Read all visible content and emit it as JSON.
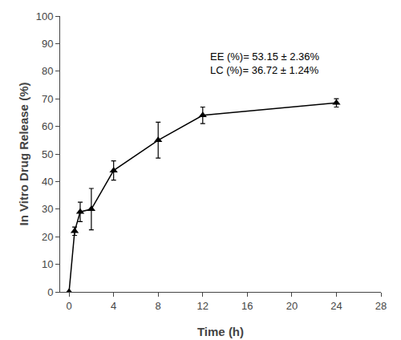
{
  "chart_data": {
    "type": "line",
    "x": [
      0,
      0.5,
      1,
      2,
      4,
      8,
      12,
      24
    ],
    "values": [
      0,
      22,
      29,
      30,
      44,
      55,
      64,
      68.5
    ],
    "yerr": [
      0,
      1.5,
      3.5,
      7.5,
      3.5,
      6.5,
      3.0,
      1.5
    ],
    "xlabel": "Time (h)",
    "ylabel": "In Vitro Drug Release (%)",
    "xlim": [
      -0.8,
      28
    ],
    "ylim": [
      0,
      100
    ],
    "xticks": [
      0,
      4,
      8,
      12,
      16,
      20,
      24,
      28
    ],
    "yticks": [
      0,
      10,
      20,
      30,
      40,
      50,
      60,
      70,
      80,
      90,
      100
    ],
    "annotation": {
      "lines": [
        "EE (%)= 53.15 ± 2.36%",
        "LC (%)= 36.72 ± 1.24%"
      ],
      "x": 12.5,
      "y": 88
    },
    "marker": "triangle-up",
    "line_style": "solid",
    "color": "#000000",
    "grid": false
  }
}
